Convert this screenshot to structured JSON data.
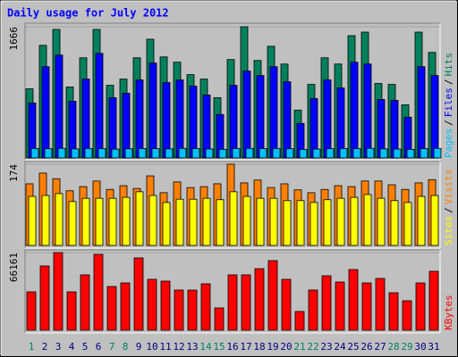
{
  "title": "Daily usage for July 2012",
  "separator": "/",
  "categories": [
    "1",
    "2",
    "3",
    "4",
    "5",
    "6",
    "7",
    "8",
    "9",
    "10",
    "11",
    "12",
    "13",
    "14",
    "15",
    "16",
    "17",
    "18",
    "19",
    "20",
    "21",
    "22",
    "23",
    "24",
    "25",
    "26",
    "27",
    "28",
    "29",
    "30",
    "31"
  ],
  "weekend_days": [
    0,
    6,
    7,
    13,
    14,
    20,
    21,
    27,
    28
  ],
  "weekday_color": "#000080",
  "weekend_color": "#00805C",
  "chart_data": [
    {
      "type": "bar",
      "ylim": [
        0,
        1666
      ],
      "yticks": [
        1666
      ],
      "series": [
        {
          "name": "Pages",
          "color": "#00C0FF",
          "values": [
            120,
            118,
            122,
            115,
            121,
            119,
            112,
            117,
            120,
            118,
            116,
            121,
            119,
            114,
            110,
            120,
            122,
            119,
            121,
            117,
            108,
            113,
            118,
            120,
            119,
            122,
            115,
            113,
            109,
            118,
            121
          ]
        },
        {
          "name": "Files",
          "color": "#0000FF",
          "values": [
            698,
            1159,
            1306,
            720,
            1002,
            1328,
            765,
            822,
            991,
            1205,
            957,
            991,
            912,
            799,
            552,
            923,
            1103,
            1047,
            1159,
            968,
            439,
            754,
            991,
            889,
            1216,
            1193,
            743,
            732,
            518,
            1159,
            1047
          ]
        },
        {
          "name": "Hits",
          "color": "#00805C",
          "values": [
            878,
            1430,
            1632,
            901,
            1272,
            1632,
            923,
            1002,
            1272,
            1508,
            1283,
            1216,
            1058,
            1002,
            765,
            1250,
            1666,
            1238,
            1418,
            1193,
            608,
            934,
            1272,
            1193,
            1553,
            1598,
            946,
            934,
            675,
            1598,
            1340
          ]
        }
      ]
    },
    {
      "type": "bar",
      "ylim": [
        0,
        174
      ],
      "yticks": [
        174
      ],
      "series": [
        {
          "name": "Sites",
          "color": "#FFFF00",
          "values": [
            105,
            107,
            111,
            94,
            101,
            101,
            101,
            103,
            115,
            107,
            92,
            99,
            99,
            101,
            98,
            115,
            105,
            101,
            101,
            96,
            96,
            92,
            98,
            101,
            103,
            109,
            101,
            96,
            92,
            105,
            107
          ]
        },
        {
          "name": "Visits",
          "color": "#FF8000",
          "values": [
            132,
            155,
            143,
            117,
            126,
            138,
            120,
            128,
            122,
            149,
            113,
            136,
            124,
            126,
            132,
            174,
            134,
            140,
            124,
            132,
            119,
            113,
            120,
            128,
            126,
            138,
            138,
            130,
            120,
            134,
            141
          ]
        }
      ]
    },
    {
      "type": "bar",
      "ylim": [
        0,
        66161
      ],
      "yticks": [
        66161
      ],
      "series": [
        {
          "name": "KBytes",
          "color": "#FF0000",
          "values": [
            32700,
            54756,
            66161,
            32700,
            47150,
            64640,
            37264,
            40305,
            61600,
            43350,
            41830,
            34220,
            34220,
            39550,
            19010,
            47150,
            47150,
            52470,
            59320,
            43350,
            15970,
            34220,
            46390,
            41070,
            51710,
            40305,
            44110,
            31940,
            25100,
            40305,
            50190
          ]
        }
      ]
    }
  ]
}
